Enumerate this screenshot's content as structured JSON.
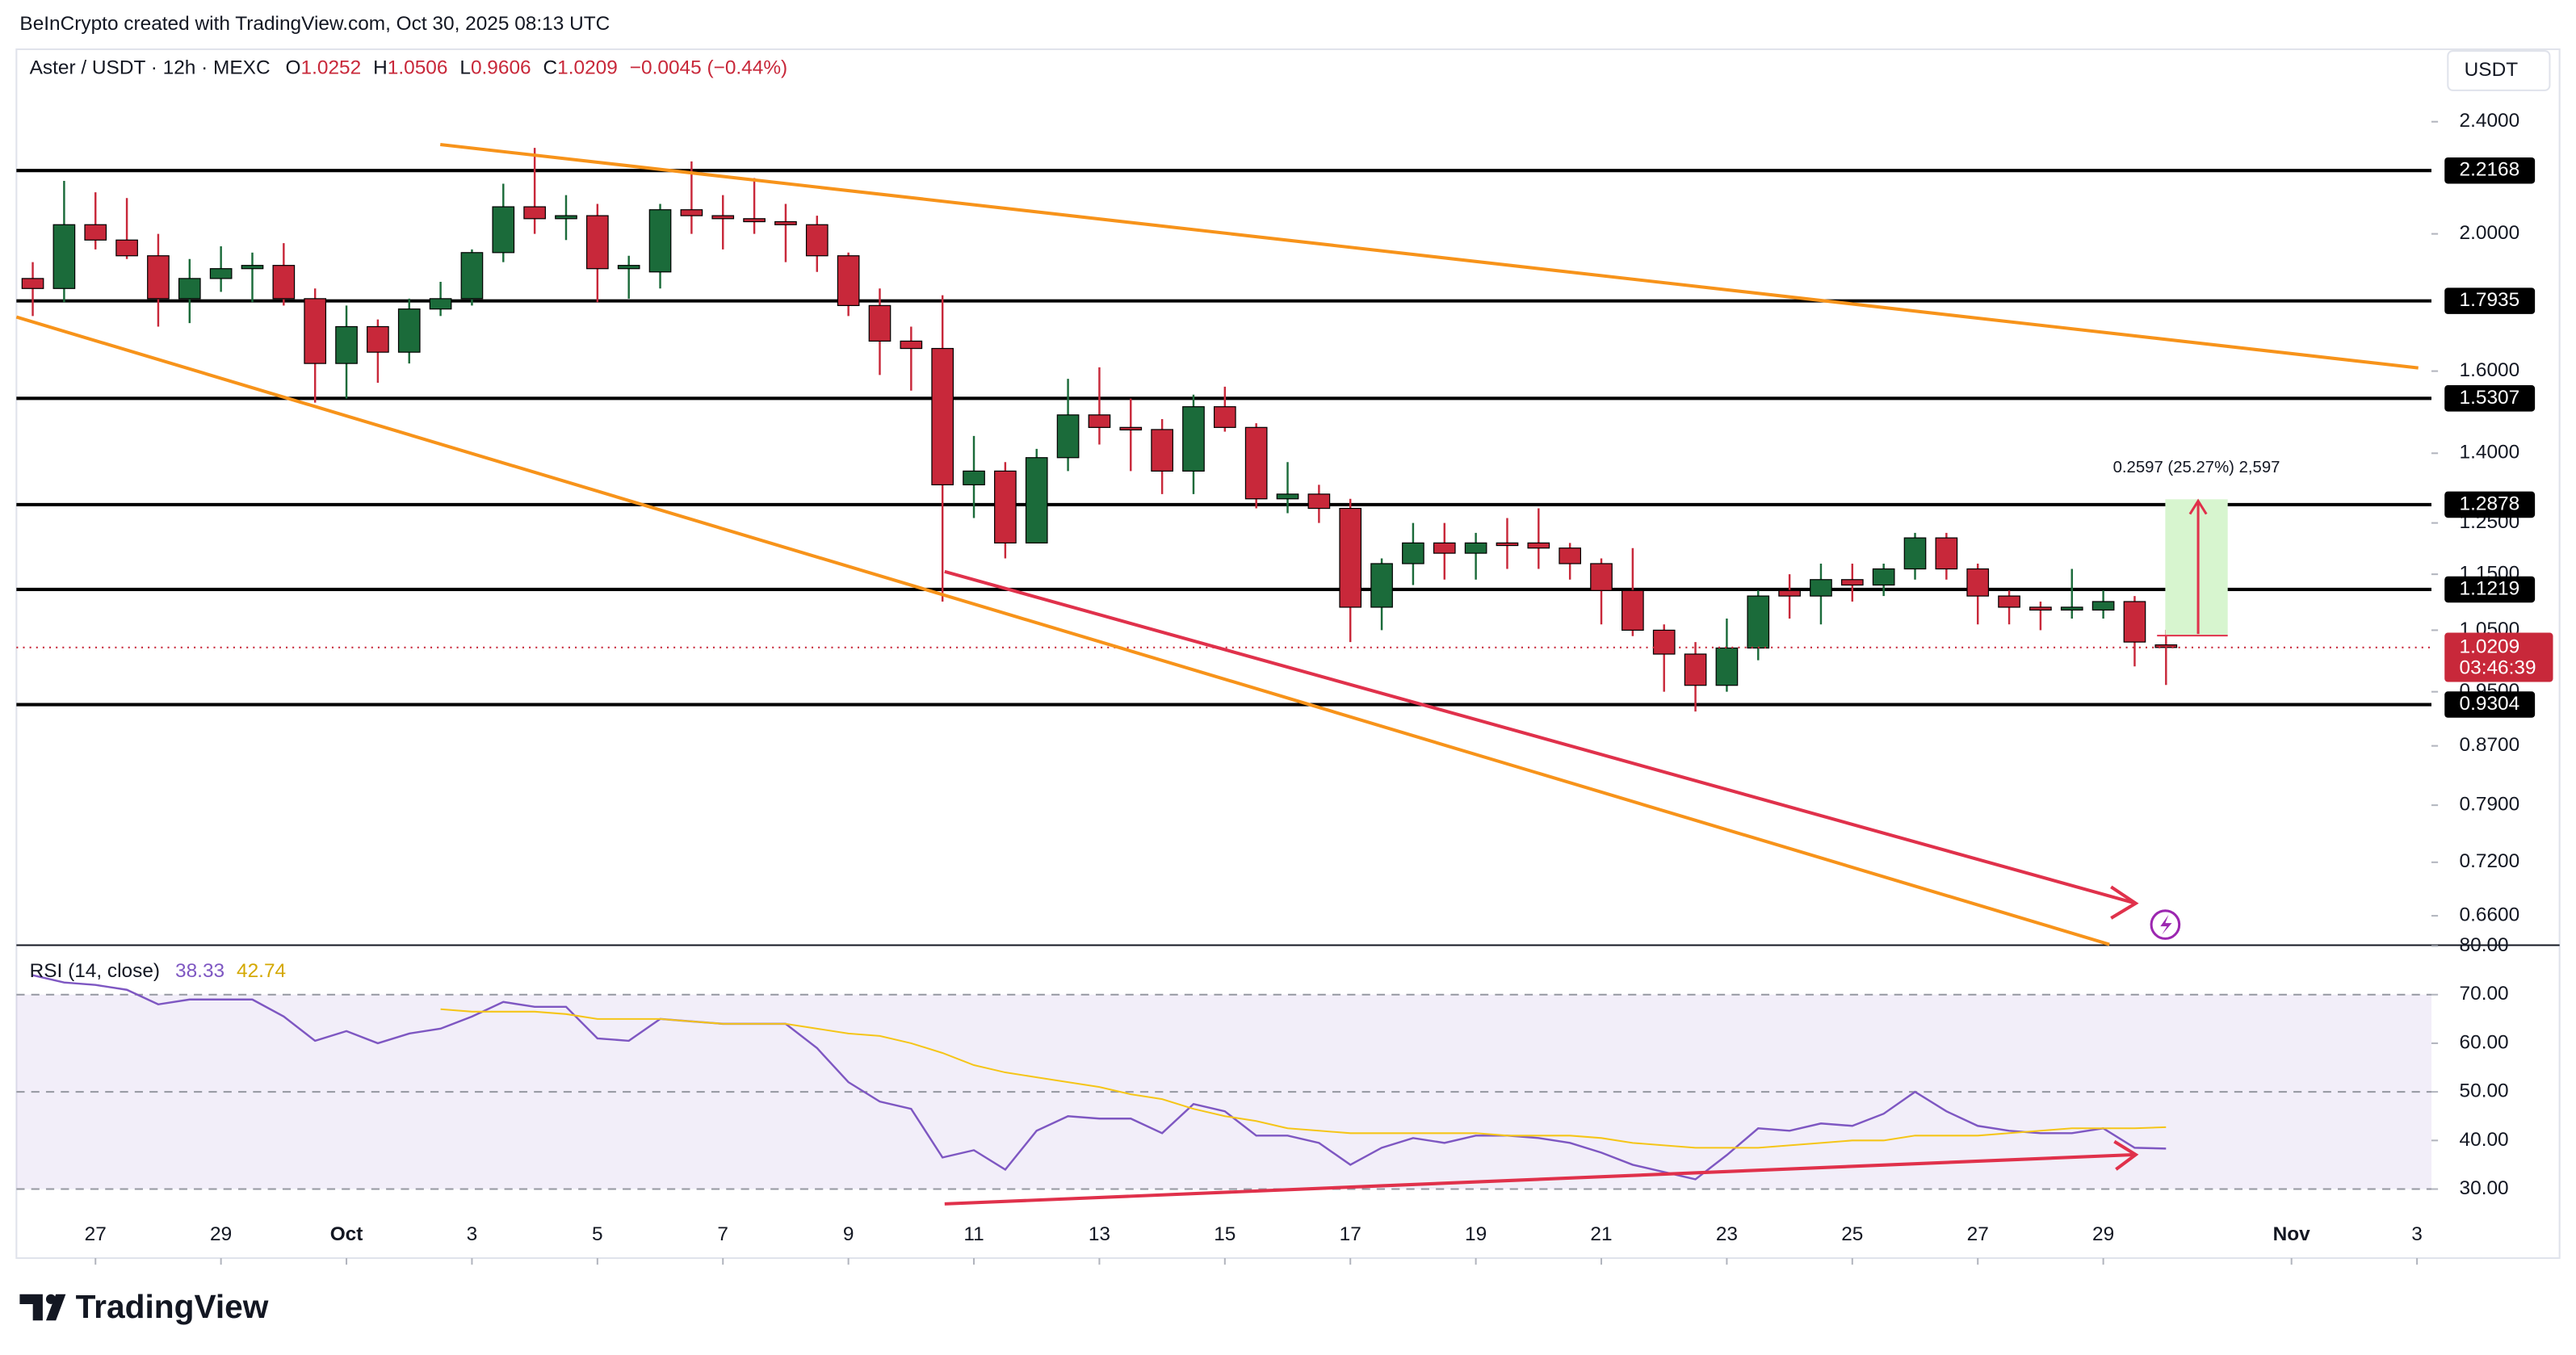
{
  "header": {
    "attribution": "BeInCrypto created with TradingView.com, Oct 30, 2025 08:13 UTC",
    "currency": "USDT",
    "logo": "TradingView"
  },
  "chart_data": {
    "type": "candlestick",
    "title": "Aster / USDT · 12h · MEXC",
    "ohlc_labels": [
      "O",
      "H",
      "L",
      "C"
    ],
    "change": "−0.0045 (−0.44%)",
    "countdown": "03:46:39",
    "position_label": "0.2597 (25.27%) 2,597",
    "up_color": "#1b6b3a",
    "down_color": "#c8283a",
    "log_scale": true,
    "grid": false,
    "x": [
      -1,
      -0.5,
      0,
      0.5,
      1,
      1.5,
      2,
      2.5,
      3,
      3.5,
      4,
      4.5,
      5,
      5.5,
      6,
      6.5,
      7,
      7.5,
      8,
      8.5,
      9,
      9.5,
      10,
      10.5,
      11,
      11.5,
      12,
      12.5,
      13,
      13.5,
      14,
      14.5,
      15,
      15.5,
      16,
      16.5,
      17,
      17.5,
      18,
      18.5,
      19,
      19.5,
      20,
      20.5,
      21,
      21.5,
      22,
      22.5,
      23,
      23.5,
      24,
      24.5,
      25,
      25.5,
      26,
      26.5,
      27,
      27.5,
      28,
      28.5,
      29,
      29.5,
      30,
      30.5,
      31,
      31.5,
      32,
      32.5,
      33
    ],
    "open": [
      1.86,
      1.83,
      2.03,
      1.98,
      1.93,
      1.8,
      1.86,
      1.89,
      1.9,
      1.8,
      1.62,
      1.72,
      1.65,
      1.77,
      1.8,
      1.94,
      2.09,
      2.05,
      2.06,
      1.89,
      1.88,
      2.08,
      2.06,
      2.05,
      2.04,
      2.03,
      1.93,
      1.78,
      1.68,
      1.66,
      1.33,
      1.36,
      1.21,
      1.39,
      1.49,
      1.46,
      1.455,
      1.36,
      1.51,
      1.46,
      1.3,
      1.31,
      1.28,
      1.09,
      1.17,
      1.21,
      1.19,
      1.21,
      1.21,
      1.2,
      1.17,
      1.12,
      1.05,
      1.01,
      0.96,
      1.02,
      1.12,
      1.11,
      1.14,
      1.13,
      1.16,
      1.22,
      1.16,
      1.11,
      1.09,
      1.085,
      1.085,
      1.1,
      1.0252
    ],
    "high": [
      1.91,
      2.18,
      2.14,
      2.12,
      2.0,
      1.92,
      1.96,
      1.94,
      1.97,
      1.83,
      1.78,
      1.74,
      1.8,
      1.85,
      1.95,
      2.17,
      2.3,
      2.13,
      2.1,
      1.93,
      2.1,
      2.25,
      2.13,
      2.19,
      2.1,
      2.06,
      1.94,
      1.83,
      1.72,
      1.81,
      1.44,
      1.38,
      1.41,
      1.58,
      1.61,
      1.53,
      1.48,
      1.54,
      1.56,
      1.47,
      1.38,
      1.33,
      1.3,
      1.18,
      1.25,
      1.25,
      1.23,
      1.26,
      1.28,
      1.21,
      1.18,
      1.2,
      1.06,
      1.03,
      1.07,
      1.12,
      1.15,
      1.17,
      1.17,
      1.17,
      1.23,
      1.23,
      1.17,
      1.12,
      1.1,
      1.16,
      1.12,
      1.11,
      1.0506
    ],
    "low": [
      1.75,
      1.79,
      1.95,
      1.92,
      1.72,
      1.73,
      1.82,
      1.79,
      1.78,
      1.52,
      1.53,
      1.57,
      1.62,
      1.75,
      1.78,
      1.91,
      2.0,
      1.98,
      1.79,
      1.8,
      1.83,
      2.0,
      1.95,
      2.0,
      1.91,
      1.88,
      1.75,
      1.59,
      1.55,
      1.1,
      1.26,
      1.18,
      1.21,
      1.36,
      1.42,
      1.36,
      1.31,
      1.31,
      1.45,
      1.28,
      1.27,
      1.25,
      1.03,
      1.05,
      1.13,
      1.14,
      1.14,
      1.16,
      1.16,
      1.14,
      1.06,
      1.04,
      0.95,
      0.92,
      0.95,
      1.0,
      1.07,
      1.06,
      1.1,
      1.11,
      1.14,
      1.14,
      1.06,
      1.06,
      1.05,
      1.07,
      1.07,
      0.99,
      0.9606
    ],
    "close": [
      1.83,
      2.03,
      1.98,
      1.93,
      1.8,
      1.86,
      1.89,
      1.9,
      1.8,
      1.62,
      1.72,
      1.65,
      1.77,
      1.8,
      1.94,
      2.09,
      2.05,
      2.06,
      1.89,
      1.9,
      2.08,
      2.06,
      2.05,
      2.04,
      2.03,
      1.93,
      1.78,
      1.68,
      1.66,
      1.33,
      1.36,
      1.21,
      1.39,
      1.49,
      1.46,
      1.455,
      1.36,
      1.51,
      1.46,
      1.3,
      1.31,
      1.28,
      1.09,
      1.17,
      1.21,
      1.19,
      1.21,
      1.205,
      1.2,
      1.17,
      1.12,
      1.05,
      1.01,
      0.96,
      1.02,
      1.11,
      1.11,
      1.14,
      1.13,
      1.16,
      1.22,
      1.16,
      1.11,
      1.09,
      1.085,
      1.09,
      1.1,
      1.03,
      1.0209
    ],
    "xlim": [
      -1.26,
      37.23
    ],
    "xticks": [
      {
        "value": 0,
        "label": "27"
      },
      {
        "value": 2,
        "label": "29"
      },
      {
        "value": 4,
        "label": "Oct"
      },
      {
        "value": 6,
        "label": "3"
      },
      {
        "value": 8,
        "label": "5"
      },
      {
        "value": 10,
        "label": "7"
      },
      {
        "value": 12,
        "label": "9"
      },
      {
        "value": 14,
        "label": "11"
      },
      {
        "value": 16,
        "label": "13"
      },
      {
        "value": 18,
        "label": "15"
      },
      {
        "value": 20,
        "label": "17"
      },
      {
        "value": 22,
        "label": "19"
      },
      {
        "value": 24,
        "label": "21"
      },
      {
        "value": 26,
        "label": "23"
      },
      {
        "value": 28,
        "label": "25"
      },
      {
        "value": 30,
        "label": "27"
      },
      {
        "value": 32,
        "label": "29"
      },
      {
        "value": 35,
        "label": "Nov"
      },
      {
        "value": 37,
        "label": "3"
      }
    ],
    "ylim": [
      0.63,
      2.7
    ],
    "yticks": [
      {
        "value": 2.4,
        "label": "2.4000"
      },
      {
        "value": 2.0,
        "label": "2.0000"
      },
      {
        "value": 1.6,
        "label": "1.6000"
      },
      {
        "value": 1.4,
        "label": "1.4000"
      },
      {
        "value": 1.25,
        "label": "1.2500"
      },
      {
        "value": 1.15,
        "label": "1.1500"
      },
      {
        "value": 1.05,
        "label": "1.0500"
      },
      {
        "value": 0.95,
        "label": "0.9500"
      },
      {
        "value": 0.87,
        "label": "0.8700"
      },
      {
        "value": 0.79,
        "label": "0.7900"
      },
      {
        "value": 0.72,
        "label": "0.7200"
      },
      {
        "value": 0.66,
        "label": "0.6600"
      }
    ],
    "levels": [
      2.2168,
      1.7935,
      1.5307,
      1.2878,
      1.1219,
      0.9304
    ],
    "indicator": {
      "type": "line",
      "title": "RSI (14, close)",
      "ylim": [
        15.8,
        80
      ],
      "yticks": [
        {
          "value": 80,
          "label": "80.00"
        },
        {
          "value": 70,
          "label": "70.00"
        },
        {
          "value": 60,
          "label": "60.00"
        },
        {
          "value": 50,
          "label": "50.00"
        },
        {
          "value": 40,
          "label": "40.00"
        },
        {
          "value": 30,
          "label": "30.00"
        }
      ],
      "band": [
        30,
        70
      ],
      "band_color": "#7e57c2",
      "guides": [
        70,
        50,
        30
      ],
      "series": [
        {
          "color": "#7e57c2",
          "values": [
            74,
            72.5,
            72,
            71,
            68,
            69,
            69,
            69,
            65.5,
            60.5,
            62.5,
            60,
            62,
            63,
            65.5,
            68.5,
            67.5,
            67.5,
            61,
            60.5,
            65,
            64.5,
            64,
            64,
            64,
            59,
            52,
            48,
            46.5,
            36.5,
            38,
            34,
            42,
            45,
            44.5,
            44.5,
            41.5,
            47.5,
            46,
            41,
            41,
            39.5,
            35,
            38.5,
            40.5,
            39.5,
            41,
            41,
            40.5,
            39.5,
            37.5,
            35,
            33.5,
            32,
            37,
            42.5,
            42,
            43.5,
            43,
            45.5,
            50,
            46,
            43,
            42,
            41.5,
            41.5,
            42.5,
            38.5,
            38.33
          ]
        },
        {
          "color": "#f5c518",
          "values": [
            null,
            null,
            null,
            null,
            null,
            null,
            null,
            null,
            null,
            null,
            null,
            null,
            null,
            67,
            66.5,
            66.5,
            66.5,
            66,
            65,
            65,
            65,
            64.5,
            64,
            64,
            64,
            63,
            62,
            61.5,
            60,
            58,
            55.5,
            54,
            53,
            52,
            51,
            49.5,
            48.5,
            46.5,
            45,
            44,
            42.5,
            42,
            41.5,
            41.5,
            41.5,
            41.5,
            41.5,
            41,
            41,
            41,
            40.5,
            39.5,
            39,
            38.5,
            38.5,
            38.5,
            39,
            39.5,
            40,
            40,
            41,
            41,
            41,
            41.5,
            42,
            42.5,
            42.5,
            42.5,
            42.74
          ]
        }
      ]
    }
  }
}
